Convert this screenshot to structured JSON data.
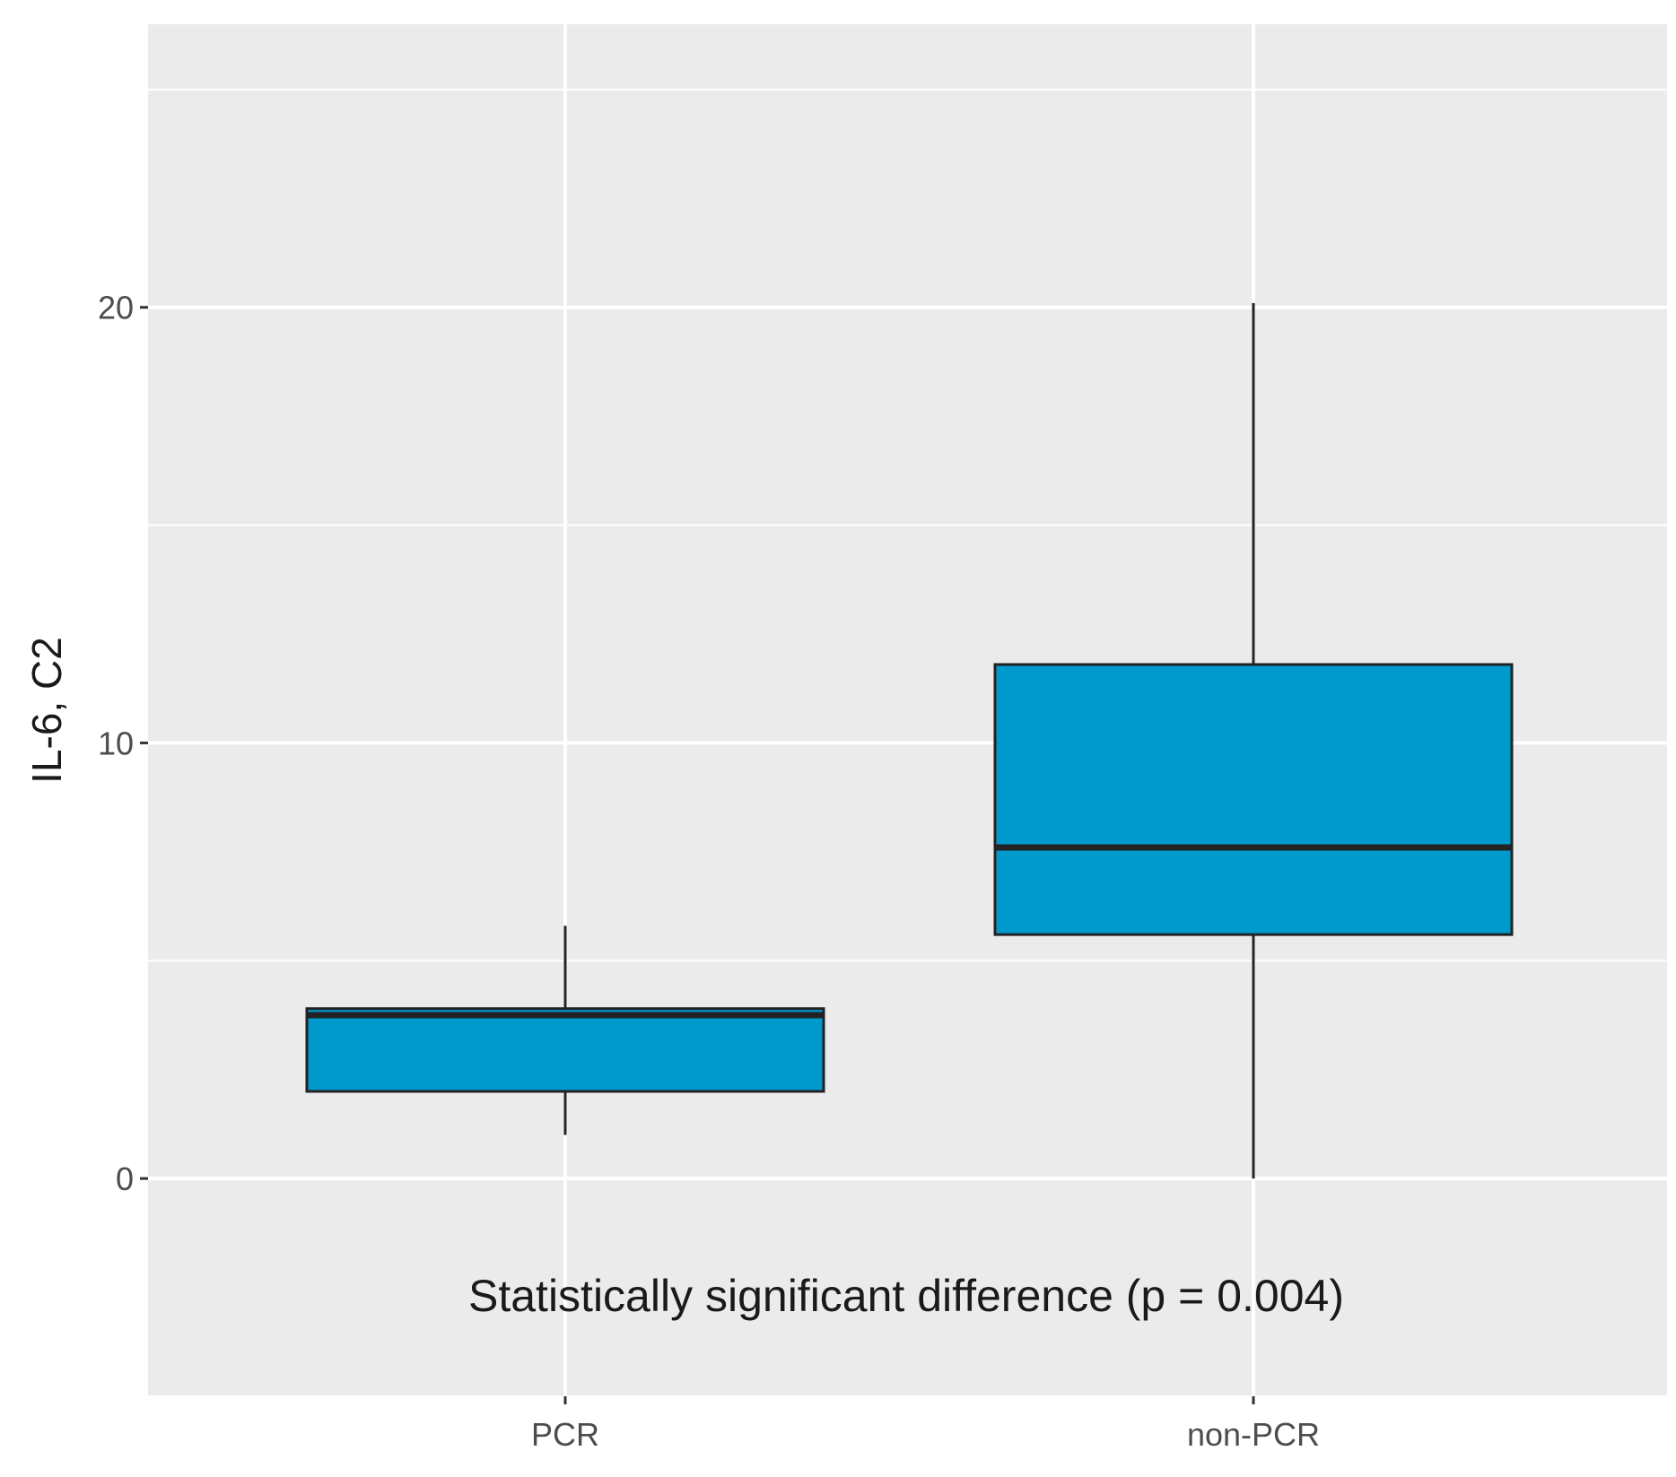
{
  "chart_data": {
    "type": "boxplot",
    "ylabel": "IL-6, C2",
    "xlabel": "",
    "categories": [
      "PCR",
      "non-PCR"
    ],
    "ylim": [
      -5,
      26.5
    ],
    "yticks": [
      0,
      10,
      20
    ],
    "ytick_labels": [
      "0",
      "10",
      "20"
    ],
    "grid": true,
    "colors": {
      "fill": "#0099cc",
      "stroke": "#222222",
      "panel": "#ebebeb",
      "grid": "#ffffff"
    },
    "boxes": [
      {
        "category": "PCR",
        "whisker_low": 1.0,
        "q1": 2.0,
        "median": 3.75,
        "q3": 3.9,
        "whisker_high": 5.8
      },
      {
        "category": "non-PCR",
        "whisker_low": 0.0,
        "q1": 5.6,
        "median": 7.6,
        "q3": 11.8,
        "whisker_high": 20.1
      }
    ],
    "annotation": "Statistically significant difference (p = 0.004)"
  }
}
